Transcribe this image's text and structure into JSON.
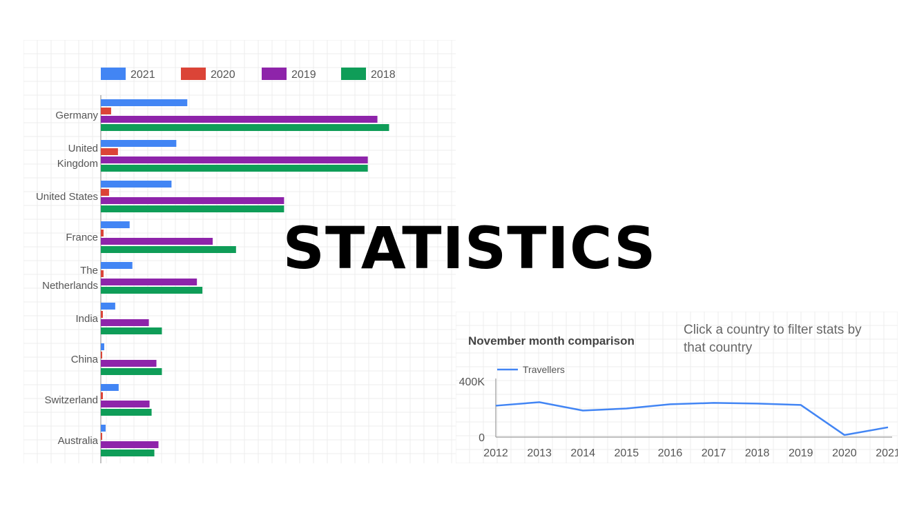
{
  "headline": "STATISTICS",
  "hint_text": "Click a country to filter stats by that country",
  "colors": {
    "2021": "#4285f4",
    "2020": "#db4437",
    "2019": "#8e24aa",
    "2018": "#0f9d58",
    "line": "#4285f4",
    "grid": "#ececec",
    "axis": "#999999",
    "label": "#555555",
    "title": "#444444"
  },
  "chart_data": [
    {
      "type": "bar",
      "orientation": "horizontal",
      "title": "",
      "xlabel": "",
      "ylabel": "",
      "legend_position": "top",
      "categories": [
        [
          "Germany"
        ],
        [
          "United",
          "Kingdom"
        ],
        [
          "United States"
        ],
        [
          "France"
        ],
        [
          "The",
          "Netherlands"
        ],
        [
          "India"
        ],
        [
          "China"
        ],
        [
          "Switzerland"
        ],
        [
          "Australia"
        ]
      ],
      "series": [
        {
          "name": "2021",
          "color_key": "2021",
          "values": [
            126,
            110,
            103,
            42,
            46,
            21,
            5,
            26,
            7
          ]
        },
        {
          "name": "2020",
          "color_key": "2020",
          "values": [
            15,
            25,
            12,
            4,
            4,
            3,
            2,
            3,
            2
          ]
        },
        {
          "name": "2019",
          "color_key": "2019",
          "values": [
            403,
            389,
            267,
            163,
            140,
            70,
            81,
            71,
            84
          ]
        },
        {
          "name": "2018",
          "color_key": "2018",
          "values": [
            420,
            389,
            267,
            197,
            148,
            89,
            89,
            74,
            78
          ]
        }
      ],
      "xlim": [
        0,
        500
      ],
      "grid": true
    },
    {
      "type": "line",
      "title": "November month comparison",
      "xlabel": "",
      "ylabel": "",
      "legend_position": "top-left",
      "x": [
        "2012",
        "2013",
        "2014",
        "2015",
        "2016",
        "2017",
        "2018",
        "2019",
        "2020",
        "2021"
      ],
      "series": [
        {
          "name": "Travellers",
          "values": [
            225000,
            250000,
            190000,
            205000,
            235000,
            245000,
            240000,
            230000,
            15000,
            70000
          ]
        }
      ],
      "y_ticks": [
        "0",
        "400K"
      ],
      "ylim": [
        0,
        400000
      ],
      "grid": true
    }
  ]
}
